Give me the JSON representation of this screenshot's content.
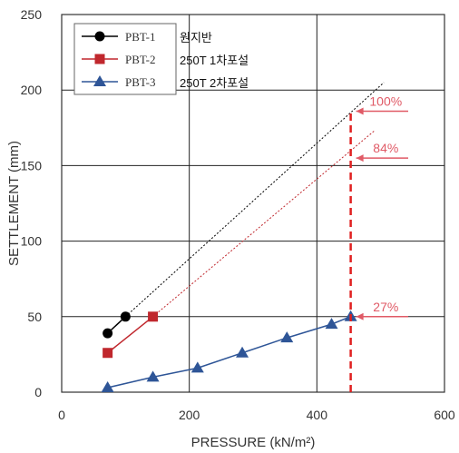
{
  "chart_data": {
    "type": "line",
    "xlabel": "PRESSURE (kN/m²)",
    "ylabel": "SETTLEMENT (mm)",
    "xlim": [
      0,
      600
    ],
    "ylim": [
      0,
      250
    ],
    "x_ticks": [
      "0",
      "200",
      "400",
      "600"
    ],
    "y_ticks": [
      "0",
      "50",
      "100",
      "150",
      "200",
      "250"
    ],
    "grid": true,
    "legend_position": "top-left",
    "series": [
      {
        "name": "PBT-1",
        "note": "원지반",
        "color": "#000000",
        "marker": "circle",
        "x": [
          72,
          100
        ],
        "y": [
          39,
          50
        ],
        "extrapolation": {
          "color": "#000000",
          "x": [
            100,
            505
          ],
          "y": [
            50,
            205
          ]
        }
      },
      {
        "name": "PBT-2",
        "note": "250T 1차포설",
        "color": "#c0272d",
        "marker": "square",
        "x": [
          72,
          143
        ],
        "y": [
          26,
          50
        ],
        "extrapolation": {
          "color": "#c0272d",
          "x": [
            143,
            490
          ],
          "y": [
            50,
            173
          ]
        }
      },
      {
        "name": "PBT-3",
        "note": "250T 2차포설",
        "color": "#2e5597",
        "marker": "triangle",
        "x": [
          72,
          143,
          213,
          283,
          353,
          423,
          453
        ],
        "y": [
          3,
          10,
          16,
          26,
          36,
          45,
          50
        ]
      }
    ],
    "reference_line": {
      "x": 453,
      "y_from": 0,
      "y_to": 186,
      "color": "#e02020"
    },
    "annotations": [
      {
        "text": "100%",
        "y": 186
      },
      {
        "text": "84%",
        "y": 155
      },
      {
        "text": "27%",
        "y": 50
      }
    ]
  }
}
